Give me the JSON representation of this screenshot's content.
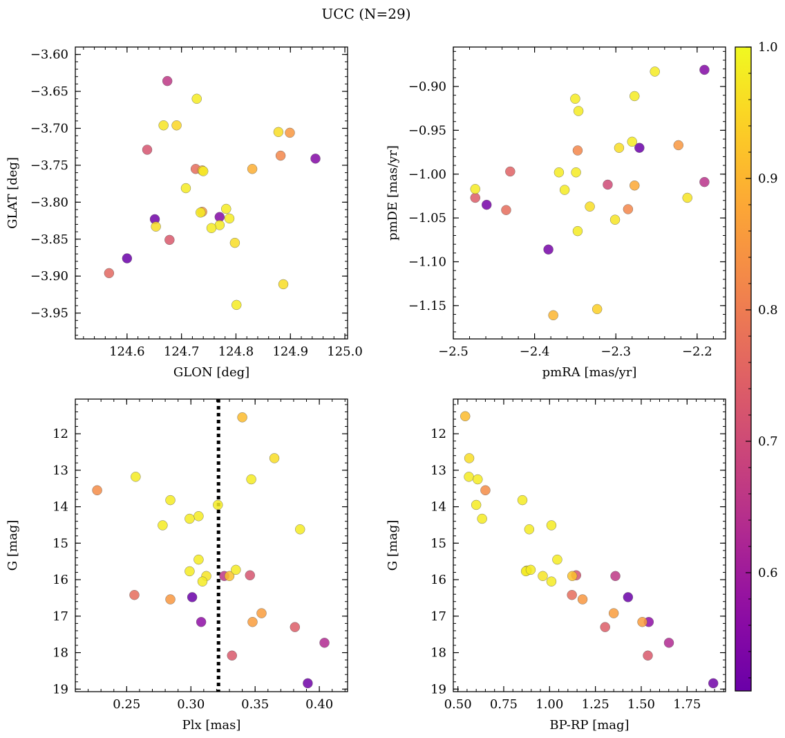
{
  "figure_title": "UCC (N=29)",
  "colorbar": {
    "min": 0.51,
    "max": 1.0,
    "ticks": [
      0.6,
      0.7,
      0.8,
      0.9,
      1.0
    ],
    "tick_labels": [
      "0.6",
      "0.7",
      "0.8",
      "0.9",
      "1.0"
    ],
    "colormap": "plasma"
  },
  "chart_data": [
    {
      "type": "scatter",
      "xlabel": "GLON [deg]",
      "ylabel": "GLAT [deg]",
      "xlim": [
        124.505,
        125.005
      ],
      "ylim": [
        -3.985,
        -3.59
      ],
      "y_inverted": false,
      "xticks": [
        124.6,
        124.7,
        124.8,
        124.9,
        125.0
      ],
      "xtick_labels": [
        "124.6",
        "124.7",
        "124.8",
        "124.9",
        "125.0"
      ],
      "yticks": [
        -3.95,
        -3.9,
        -3.85,
        -3.8,
        -3.75,
        -3.7,
        -3.65,
        -3.6
      ],
      "ytick_labels": [
        "−3.95",
        "−3.90",
        "−3.85",
        "−3.80",
        "−3.75",
        "−3.70",
        "−3.65",
        "−3.60"
      ],
      "points": [
        {
          "x": 124.674,
          "y": -3.636,
          "c": 0.66
        },
        {
          "x": 124.728,
          "y": -3.66,
          "c": 0.98
        },
        {
          "x": 124.667,
          "y": -3.696,
          "c": 0.97
        },
        {
          "x": 124.691,
          "y": -3.696,
          "c": 0.95
        },
        {
          "x": 124.878,
          "y": -3.705,
          "c": 0.96
        },
        {
          "x": 124.899,
          "y": -3.706,
          "c": 0.85
        },
        {
          "x": 124.637,
          "y": -3.729,
          "c": 0.72
        },
        {
          "x": 124.882,
          "y": -3.737,
          "c": 0.82
        },
        {
          "x": 124.946,
          "y": -3.741,
          "c": 0.55
        },
        {
          "x": 124.726,
          "y": -3.755,
          "c": 0.77
        },
        {
          "x": 124.83,
          "y": -3.755,
          "c": 0.89
        },
        {
          "x": 124.738,
          "y": -3.757,
          "c": 0.9
        },
        {
          "x": 124.74,
          "y": -3.758,
          "c": 0.98
        },
        {
          "x": 124.708,
          "y": -3.781,
          "c": 0.98
        },
        {
          "x": 124.782,
          "y": -3.809,
          "c": 0.98
        },
        {
          "x": 124.738,
          "y": -3.813,
          "c": 0.85
        },
        {
          "x": 124.735,
          "y": -3.814,
          "c": 0.98
        },
        {
          "x": 124.77,
          "y": -3.82,
          "c": 0.55
        },
        {
          "x": 124.651,
          "y": -3.823,
          "c": 0.52
        },
        {
          "x": 124.788,
          "y": -3.822,
          "c": 0.98
        },
        {
          "x": 124.77,
          "y": -3.831,
          "c": 0.98
        },
        {
          "x": 124.653,
          "y": -3.833,
          "c": 0.96
        },
        {
          "x": 124.755,
          "y": -3.835,
          "c": 0.98
        },
        {
          "x": 124.678,
          "y": -3.851,
          "c": 0.73
        },
        {
          "x": 124.798,
          "y": -3.855,
          "c": 0.96
        },
        {
          "x": 124.6,
          "y": -3.876,
          "c": 0.51
        },
        {
          "x": 124.567,
          "y": -3.896,
          "c": 0.76
        },
        {
          "x": 124.887,
          "y": -3.911,
          "c": 0.96
        },
        {
          "x": 124.801,
          "y": -3.939,
          "c": 0.98
        }
      ]
    },
    {
      "type": "scatter",
      "xlabel": "pmRA [mas/yr]",
      "ylabel": "pmDE [mas/yr]",
      "xlim": [
        -2.5,
        -2.165
      ],
      "ylim": [
        -1.188,
        -0.855
      ],
      "y_inverted": false,
      "xticks": [
        -2.5,
        -2.4,
        -2.3,
        -2.2
      ],
      "xtick_labels": [
        "−2.5",
        "−2.4",
        "−2.3",
        "−2.2"
      ],
      "yticks": [
        -1.15,
        -1.1,
        -1.05,
        -1.0,
        -0.95,
        -0.9
      ],
      "ytick_labels": [
        "−1.15",
        "−1.10",
        "−1.05",
        "−1.00",
        "−0.95",
        "−0.90"
      ],
      "points": [
        {
          "x": -2.252,
          "y": -0.883,
          "c": 0.98
        },
        {
          "x": -2.191,
          "y": -0.881,
          "c": 0.55
        },
        {
          "x": -2.277,
          "y": -0.911,
          "c": 0.98
        },
        {
          "x": -2.35,
          "y": -0.914,
          "c": 0.98
        },
        {
          "x": -2.346,
          "y": -0.928,
          "c": 0.98
        },
        {
          "x": -2.28,
          "y": -0.963,
          "c": 0.98
        },
        {
          "x": -2.223,
          "y": -0.967,
          "c": 0.85
        },
        {
          "x": -2.296,
          "y": -0.97,
          "c": 0.96
        },
        {
          "x": -2.271,
          "y": -0.97,
          "c": 0.51
        },
        {
          "x": -2.347,
          "y": -0.973,
          "c": 0.82
        },
        {
          "x": -2.43,
          "y": -0.997,
          "c": 0.75
        },
        {
          "x": -2.37,
          "y": -0.998,
          "c": 0.98
        },
        {
          "x": -2.349,
          "y": -0.998,
          "c": 0.98
        },
        {
          "x": -2.191,
          "y": -1.009,
          "c": 0.65
        },
        {
          "x": -2.31,
          "y": -1.012,
          "c": 0.7
        },
        {
          "x": -2.277,
          "y": -1.013,
          "c": 0.88
        },
        {
          "x": -2.473,
          "y": -1.017,
          "c": 0.98
        },
        {
          "x": -2.363,
          "y": -1.018,
          "c": 0.98
        },
        {
          "x": -2.212,
          "y": -1.027,
          "c": 0.97
        },
        {
          "x": -2.473,
          "y": -1.027,
          "c": 0.74
        },
        {
          "x": -2.459,
          "y": -1.035,
          "c": 0.53
        },
        {
          "x": -2.332,
          "y": -1.037,
          "c": 0.96
        },
        {
          "x": -2.285,
          "y": -1.04,
          "c": 0.82
        },
        {
          "x": -2.435,
          "y": -1.041,
          "c": 0.77
        },
        {
          "x": -2.301,
          "y": -1.052,
          "c": 0.97
        },
        {
          "x": -2.347,
          "y": -1.065,
          "c": 0.98
        },
        {
          "x": -2.383,
          "y": -1.086,
          "c": 0.53
        },
        {
          "x": -2.323,
          "y": -1.154,
          "c": 0.94
        },
        {
          "x": -2.377,
          "y": -1.161,
          "c": 0.9
        }
      ]
    },
    {
      "type": "scatter",
      "xlabel": "Plx [mas]",
      "ylabel": "G [mag]",
      "xlim": [
        0.21,
        0.422
      ],
      "ylim": [
        19.07,
        11.05
      ],
      "y_inverted": true,
      "vline": {
        "x": 0.3215,
        "style": "dotted"
      },
      "xticks": [
        0.25,
        0.3,
        0.35,
        0.4
      ],
      "xtick_labels": [
        "0.25",
        "0.30",
        "0.35",
        "0.40"
      ],
      "yticks": [
        12,
        13,
        14,
        15,
        16,
        17,
        18,
        19
      ],
      "ytick_labels": [
        "12",
        "13",
        "14",
        "15",
        "16",
        "17",
        "18",
        "19"
      ],
      "points": [
        {
          "x": 0.34,
          "y": 11.55,
          "c": 0.91
        },
        {
          "x": 0.365,
          "y": 12.67,
          "c": 0.96
        },
        {
          "x": 0.257,
          "y": 13.18,
          "c": 0.98
        },
        {
          "x": 0.347,
          "y": 13.25,
          "c": 0.98
        },
        {
          "x": 0.227,
          "y": 13.55,
          "c": 0.83
        },
        {
          "x": 0.284,
          "y": 13.82,
          "c": 0.98
        },
        {
          "x": 0.321,
          "y": 13.95,
          "c": 0.98
        },
        {
          "x": 0.306,
          "y": 14.26,
          "c": 0.98
        },
        {
          "x": 0.299,
          "y": 14.33,
          "c": 0.98
        },
        {
          "x": 0.278,
          "y": 14.51,
          "c": 0.98
        },
        {
          "x": 0.385,
          "y": 14.62,
          "c": 0.98
        },
        {
          "x": 0.306,
          "y": 15.45,
          "c": 0.98
        },
        {
          "x": 0.335,
          "y": 15.73,
          "c": 0.98
        },
        {
          "x": 0.299,
          "y": 15.77,
          "c": 0.98
        },
        {
          "x": 0.312,
          "y": 15.9,
          "c": 0.97
        },
        {
          "x": 0.326,
          "y": 15.9,
          "c": 0.66
        },
        {
          "x": 0.33,
          "y": 15.9,
          "c": 0.92
        },
        {
          "x": 0.346,
          "y": 15.88,
          "c": 0.72
        },
        {
          "x": 0.309,
          "y": 16.05,
          "c": 0.98
        },
        {
          "x": 0.256,
          "y": 16.42,
          "c": 0.77
        },
        {
          "x": 0.301,
          "y": 16.48,
          "c": 0.51
        },
        {
          "x": 0.284,
          "y": 16.54,
          "c": 0.85
        },
        {
          "x": 0.355,
          "y": 16.92,
          "c": 0.86
        },
        {
          "x": 0.308,
          "y": 17.16,
          "c": 0.57
        },
        {
          "x": 0.348,
          "y": 17.16,
          "c": 0.86
        },
        {
          "x": 0.381,
          "y": 17.3,
          "c": 0.74
        },
        {
          "x": 0.404,
          "y": 17.73,
          "c": 0.63
        },
        {
          "x": 0.332,
          "y": 18.08,
          "c": 0.73
        },
        {
          "x": 0.391,
          "y": 18.84,
          "c": 0.52
        }
      ]
    },
    {
      "type": "scatter",
      "xlabel": "BP-RP [mag]",
      "ylabel": "G [mag]",
      "xlim": [
        0.475,
        1.96
      ],
      "ylim": [
        19.07,
        11.05
      ],
      "y_inverted": true,
      "xticks": [
        0.5,
        0.75,
        1.0,
        1.25,
        1.5,
        1.75
      ],
      "xtick_labels": [
        "0.50",
        "0.75",
        "1.00",
        "1.25",
        "1.50",
        "1.75"
      ],
      "yticks": [
        12,
        13,
        14,
        15,
        16,
        17,
        18,
        19
      ],
      "ytick_labels": [
        "12",
        "13",
        "14",
        "15",
        "16",
        "17",
        "18",
        "19"
      ],
      "points": [
        {
          "x": 0.54,
          "y": 11.52,
          "c": 0.91
        },
        {
          "x": 0.562,
          "y": 12.67,
          "c": 0.96
        },
        {
          "x": 0.56,
          "y": 13.18,
          "c": 0.98
        },
        {
          "x": 0.608,
          "y": 13.25,
          "c": 0.98
        },
        {
          "x": 0.65,
          "y": 13.55,
          "c": 0.83
        },
        {
          "x": 0.6,
          "y": 13.95,
          "c": 0.98
        },
        {
          "x": 0.632,
          "y": 14.33,
          "c": 0.98
        },
        {
          "x": 0.852,
          "y": 13.82,
          "c": 0.98
        },
        {
          "x": 1.01,
          "y": 14.51,
          "c": 0.98
        },
        {
          "x": 0.889,
          "y": 14.62,
          "c": 0.98
        },
        {
          "x": 1.042,
          "y": 15.45,
          "c": 0.98
        },
        {
          "x": 0.871,
          "y": 15.77,
          "c": 0.98
        },
        {
          "x": 0.897,
          "y": 15.73,
          "c": 0.98
        },
        {
          "x": 0.963,
          "y": 15.9,
          "c": 0.97
        },
        {
          "x": 1.01,
          "y": 16.05,
          "c": 0.98
        },
        {
          "x": 1.124,
          "y": 15.9,
          "c": 0.92
        },
        {
          "x": 1.145,
          "y": 15.88,
          "c": 0.72
        },
        {
          "x": 1.359,
          "y": 15.9,
          "c": 0.66
        },
        {
          "x": 1.122,
          "y": 16.42,
          "c": 0.77
        },
        {
          "x": 1.18,
          "y": 16.54,
          "c": 0.85
        },
        {
          "x": 1.428,
          "y": 16.48,
          "c": 0.51
        },
        {
          "x": 1.35,
          "y": 16.92,
          "c": 0.86
        },
        {
          "x": 1.506,
          "y": 17.16,
          "c": 0.86
        },
        {
          "x": 1.541,
          "y": 17.16,
          "c": 0.57
        },
        {
          "x": 1.303,
          "y": 17.3,
          "c": 0.74
        },
        {
          "x": 1.651,
          "y": 17.73,
          "c": 0.63
        },
        {
          "x": 1.536,
          "y": 18.08,
          "c": 0.73
        },
        {
          "x": 1.893,
          "y": 18.84,
          "c": 0.52
        },
        {
          "x": 0.876,
          "y": 15.75,
          "c": 0.97
        }
      ]
    }
  ]
}
